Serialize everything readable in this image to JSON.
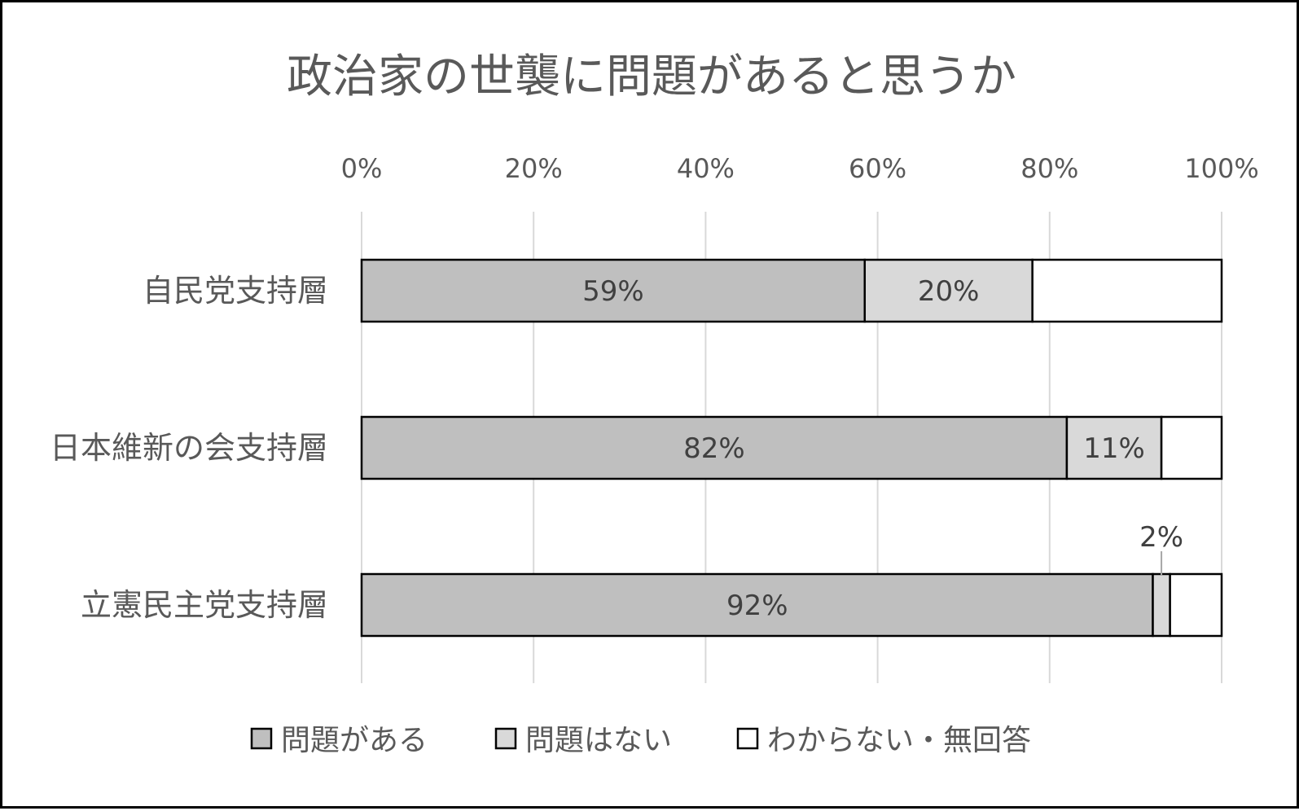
{
  "chart_data": {
    "type": "bar",
    "orientation": "horizontal",
    "stacked": "percent",
    "title": "政治家の世襲に問題があると思うか",
    "categories": [
      "自民党支持層",
      "日本維新の会支持層",
      "立憲民主党支持層"
    ],
    "xlim": [
      0,
      100
    ],
    "x_ticks": [
      "0%",
      "20%",
      "40%",
      "60%",
      "80%",
      "100%"
    ],
    "x_axis_position": "top",
    "grid": true,
    "legend_position": "bottom",
    "series": [
      {
        "name": "問題がある",
        "color": "#bfbfbf",
        "values": [
          58.5,
          82,
          92
        ],
        "labels": [
          "59%",
          "82%",
          "92%"
        ]
      },
      {
        "name": "問題はない",
        "color": "#d9d9d9",
        "values": [
          19.5,
          11,
          2
        ],
        "labels": [
          "20%",
          "11%",
          "2%"
        ]
      },
      {
        "name": "わからない・無回答",
        "color": "#ffffff",
        "values": [
          22,
          7,
          6
        ],
        "labels": [
          "",
          "",
          ""
        ]
      }
    ]
  }
}
